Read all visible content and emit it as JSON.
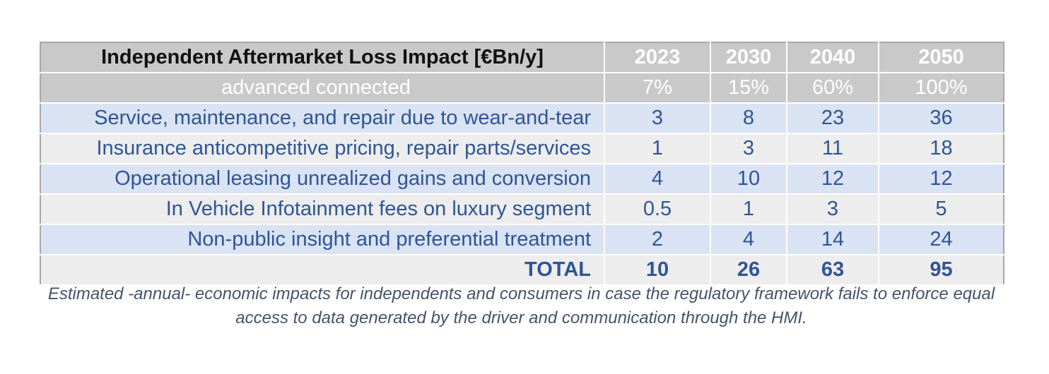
{
  "table": {
    "title": "Independent Aftermarket Loss Impact [€Bn/y]",
    "years": [
      "2023",
      "2030",
      "2040",
      "2050"
    ],
    "adoption": {
      "label": "advanced connected",
      "values": [
        "7%",
        "15%",
        "60%",
        "100%"
      ]
    },
    "rows": [
      {
        "label": "Service, maintenance, and repair due to wear-and-tear",
        "values": [
          "3",
          "8",
          "23",
          "36"
        ]
      },
      {
        "label": "Insurance anticompetitive pricing, repair parts/services",
        "values": [
          "1",
          "3",
          "11",
          "18"
        ]
      },
      {
        "label": "Operational leasing unrealized gains and conversion",
        "values": [
          "4",
          "10",
          "12",
          "12"
        ]
      },
      {
        "label": "In Vehicle Infotainment fees on luxury segment",
        "values": [
          "0.5",
          "1",
          "3",
          "5"
        ]
      },
      {
        "label": "Non-public insight and preferential treatment",
        "values": [
          "2",
          "4",
          "14",
          "24"
        ]
      }
    ],
    "total": {
      "label": "TOTAL",
      "values": [
        "10",
        "26",
        "63",
        "95"
      ]
    }
  },
  "caption": "Estimated -annual- economic impacts for independents and consumers in case the regulatory framework fails to enforce equal access to data generated by the driver and communication through the HMI.",
  "colors": {
    "header_bg": "#c9c9c9",
    "row_blue": "#dae3f3",
    "row_grey": "#ededed",
    "text_blue": "#2f5597"
  }
}
